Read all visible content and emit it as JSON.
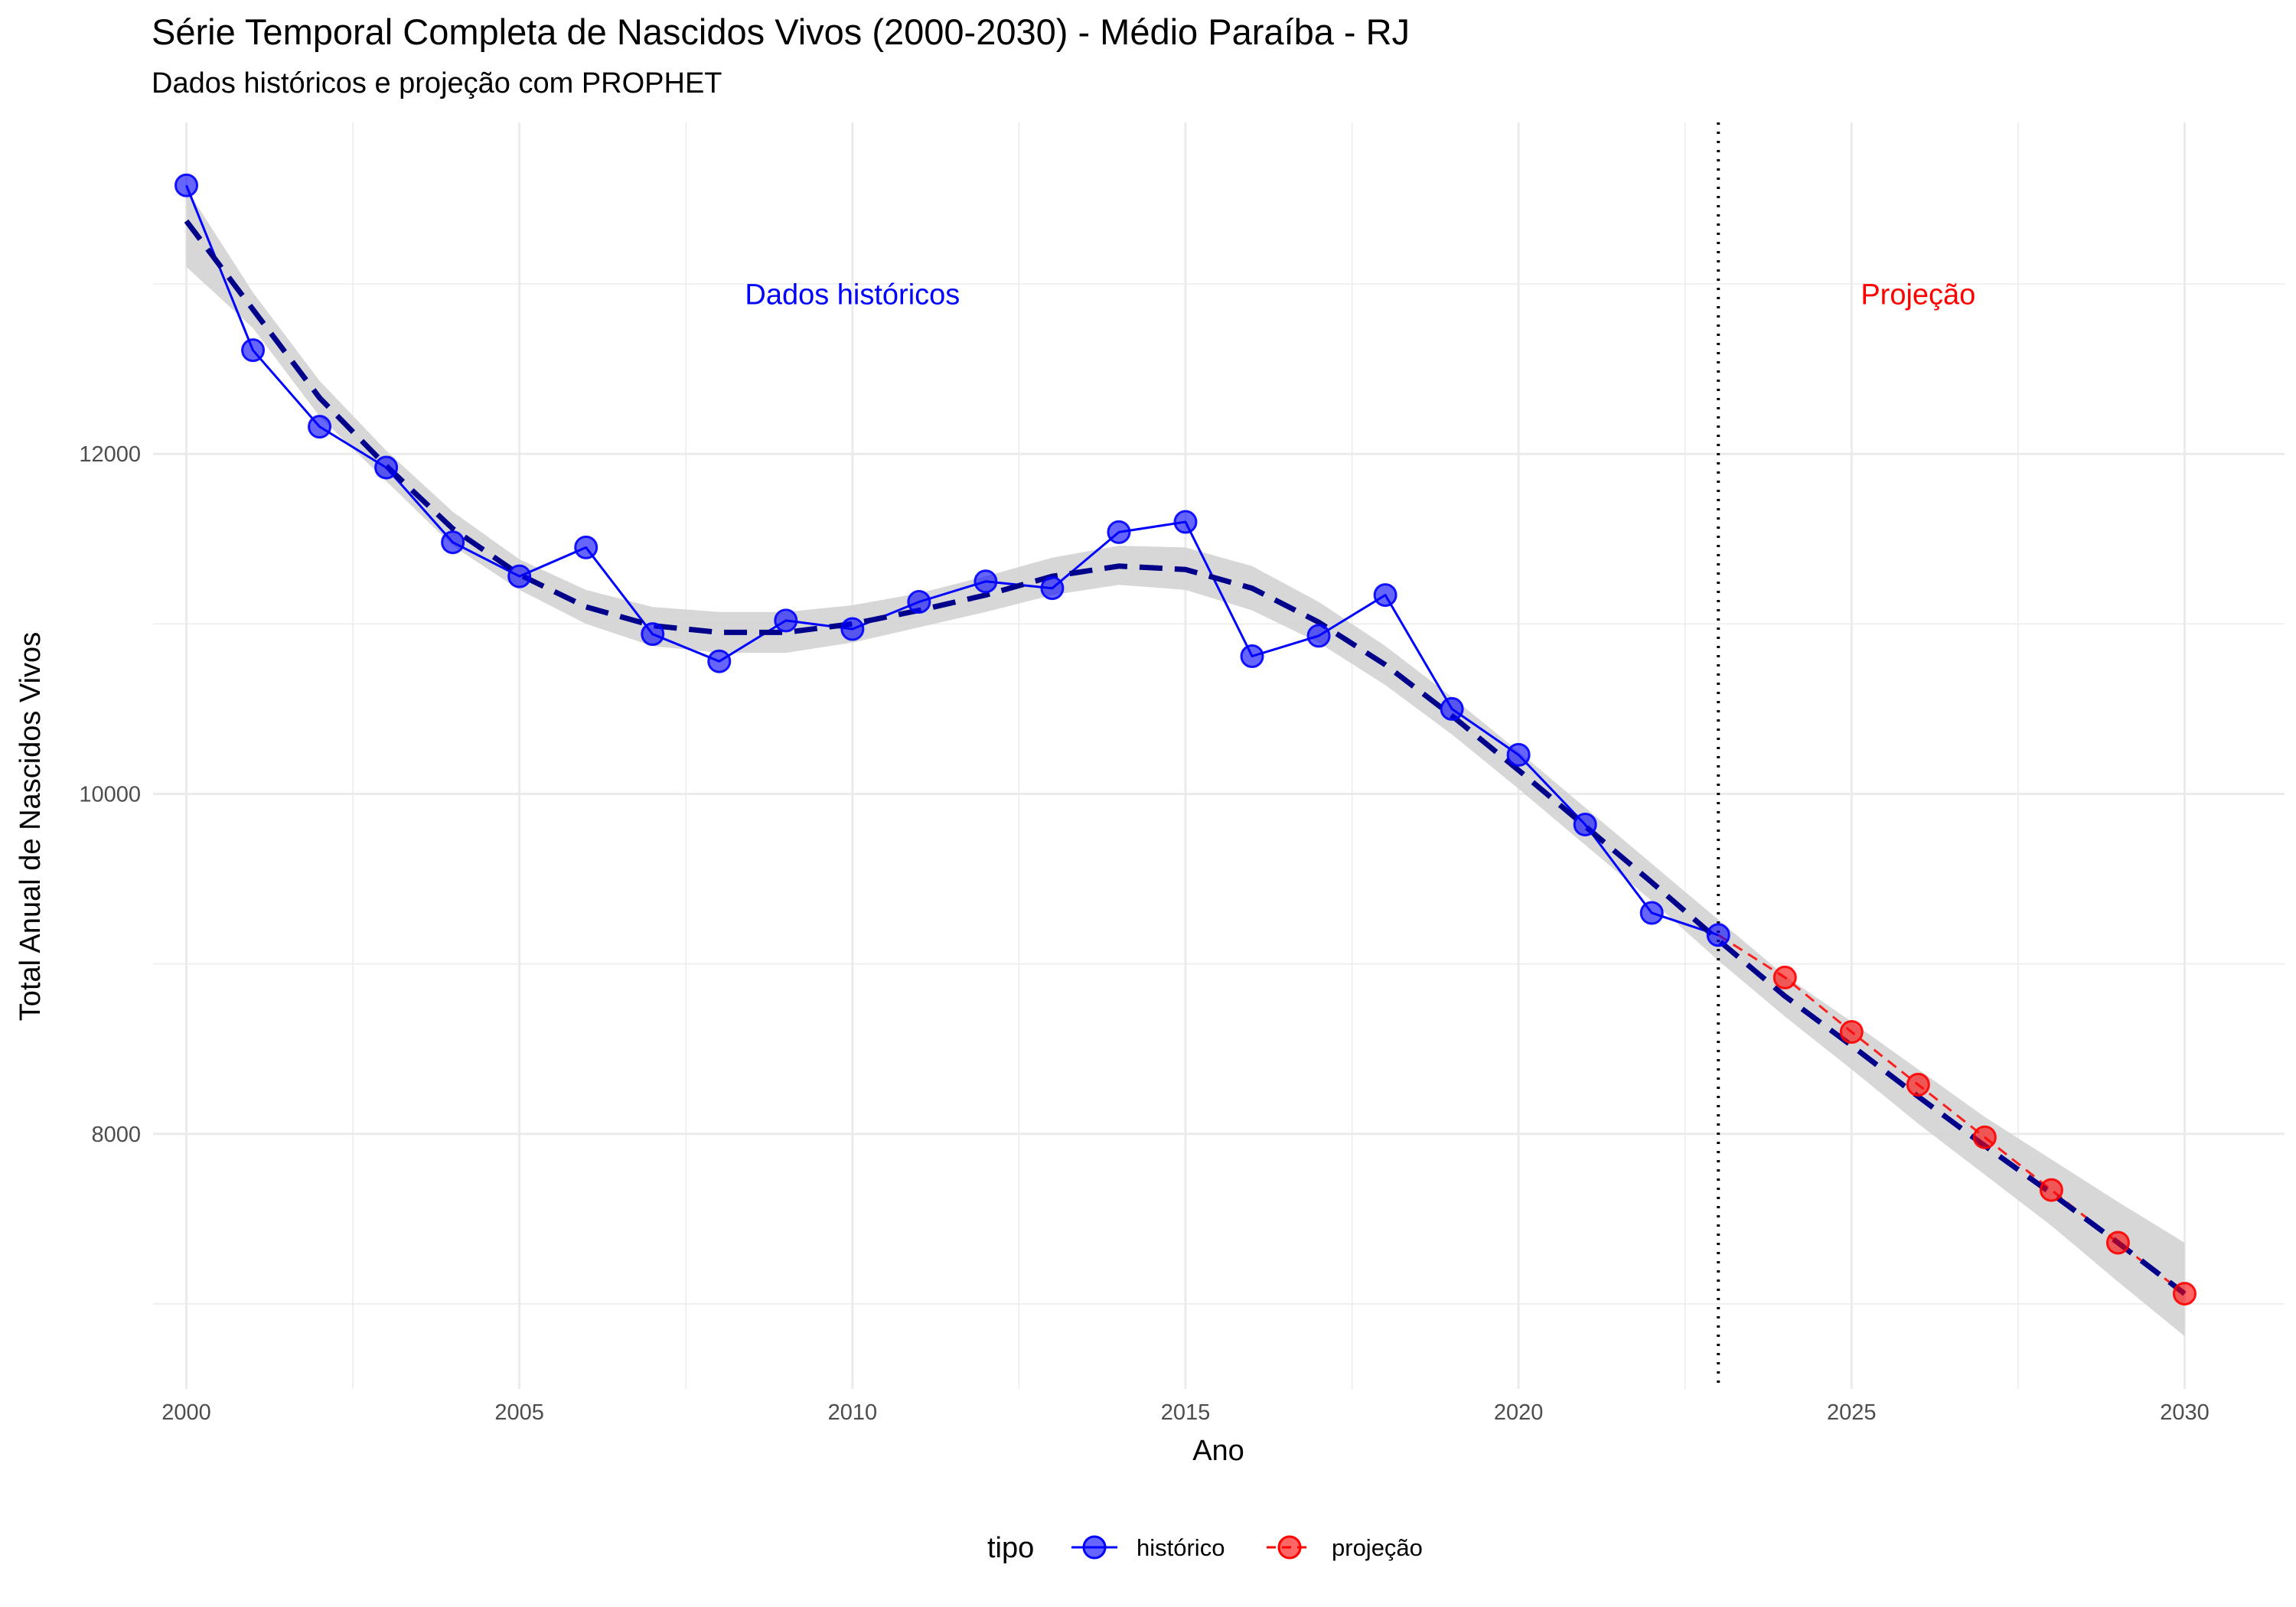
{
  "title": "Série Temporal Completa de Nascidos Vivos (2000-2030) -  Médio Paraíba - RJ",
  "subtitle": "Dados históricos e projeção com PROPHET",
  "colors": {
    "historico": "#0000FF",
    "projecao": "#FF0000",
    "trend": "#00008B",
    "ribbon": "#D3D3D3",
    "grid": "#EBEBEB",
    "vline": "#000000"
  },
  "chart_data": {
    "type": "line",
    "xlabel": "Ano",
    "ylabel": "Total Anual de Nascidos Vivos",
    "xlim": [
      1999.5,
      2031.5
    ],
    "ylim": [
      6500,
      13950
    ],
    "x_ticks": [
      2000,
      2005,
      2010,
      2015,
      2020,
      2025,
      2030
    ],
    "y_ticks": [
      8000,
      10000,
      12000
    ],
    "grid": true,
    "vline_x": 2023,
    "annotations": [
      {
        "text": "Dados históricos",
        "x": 2010,
        "y": 12880,
        "color": "#0000FF"
      },
      {
        "text": "Projeção",
        "x": 2026,
        "y": 12880,
        "color": "#FF0000"
      }
    ],
    "legend": {
      "title": "tipo",
      "position": "bottom"
    },
    "series": [
      {
        "name": "histórico",
        "color": "#0000FF",
        "x": [
          2000,
          2001,
          2002,
          2003,
          2004,
          2005,
          2006,
          2007,
          2008,
          2009,
          2010,
          2011,
          2012,
          2013,
          2014,
          2015,
          2016,
          2017,
          2018,
          2019,
          2020,
          2021,
          2022,
          2023
        ],
        "y": [
          13580,
          12610,
          12160,
          11920,
          11480,
          11280,
          11450,
          10940,
          10780,
          11020,
          10970,
          11130,
          11250,
          11210,
          11540,
          11600,
          10810,
          10930,
          11170,
          10500,
          10230,
          9820,
          9300,
          9170
        ]
      },
      {
        "name": "projeção",
        "color": "#FF0000",
        "x": [
          2023,
          2024,
          2025,
          2026,
          2027,
          2028,
          2029,
          2030
        ],
        "y": [
          9170,
          8920,
          8600,
          8290,
          7980,
          7670,
          7360,
          7060
        ]
      }
    ],
    "smooth": {
      "x": [
        2000,
        2001,
        2002,
        2003,
        2004,
        2005,
        2006,
        2007,
        2008,
        2009,
        2010,
        2011,
        2012,
        2013,
        2014,
        2015,
        2016,
        2017,
        2018,
        2019,
        2020,
        2021,
        2022,
        2023,
        2024,
        2025,
        2026,
        2027,
        2028,
        2029,
        2030
      ],
      "y": [
        13370,
        12850,
        12330,
        11930,
        11560,
        11290,
        11100,
        10990,
        10950,
        10950,
        11000,
        11080,
        11170,
        11280,
        11340,
        11320,
        11210,
        11010,
        10760,
        10460,
        10140,
        9810,
        9480,
        9140,
        8810,
        8520,
        8220,
        7930,
        7650,
        7360,
        7060
      ],
      "upper": [
        13560,
        12950,
        12430,
        12020,
        11660,
        11380,
        11200,
        11100,
        11070,
        11070,
        11110,
        11180,
        11280,
        11390,
        11460,
        11450,
        11340,
        11130,
        10870,
        10570,
        10250,
        9920,
        9590,
        9260,
        8930,
        8660,
        8380,
        8100,
        7850,
        7600,
        7360
      ],
      "lower": [
        13100,
        12740,
        12220,
        11840,
        11460,
        11200,
        11000,
        10870,
        10830,
        10830,
        10890,
        10980,
        11070,
        11170,
        11230,
        11200,
        11080,
        10890,
        10640,
        10350,
        10030,
        9700,
        9370,
        9020,
        8690,
        8380,
        8060,
        7760,
        7460,
        7130,
        6810
      ]
    }
  }
}
